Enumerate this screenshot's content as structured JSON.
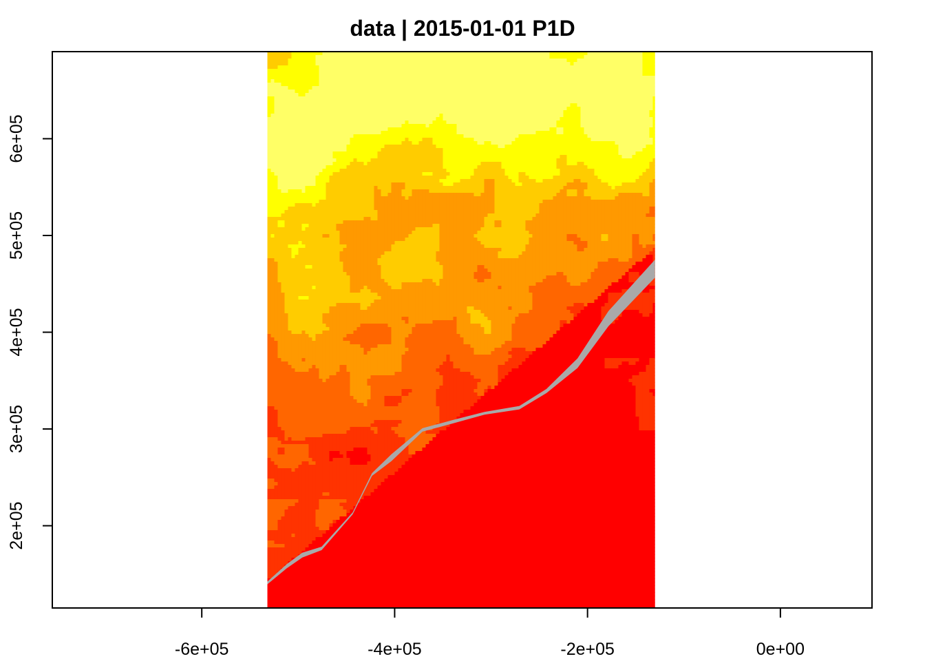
{
  "chart_data": {
    "type": "heatmap",
    "title": "data | 2015-01-01 P1D",
    "xlabel": "",
    "ylabel": "",
    "xlim": [
      -755000,
      95000
    ],
    "ylim": [
      115000,
      690000
    ],
    "x_ticks": [
      {
        "value": -600000,
        "label": "-6e+05"
      },
      {
        "value": -400000,
        "label": "-4e+05"
      },
      {
        "value": -200000,
        "label": "-2e+05"
      },
      {
        "value": 0,
        "label": "0e+00"
      }
    ],
    "y_ticks": [
      {
        "value": 200000,
        "label": "2e+05"
      },
      {
        "value": 300000,
        "label": "3e+05"
      },
      {
        "value": 400000,
        "label": "4e+05"
      },
      {
        "value": 500000,
        "label": "5e+05"
      },
      {
        "value": 600000,
        "label": "6e+05"
      }
    ],
    "raster_extent": {
      "xmin": -532000,
      "xmax": -130000,
      "ymin": 115000,
      "ymax": 690000
    },
    "palette": [
      "#FF0000",
      "#FF3300",
      "#FF6600",
      "#FF9900",
      "#FFCC00",
      "#FFFF00",
      "#FFFF66"
    ],
    "na_color": "#A9A9A9",
    "grid": false,
    "legend": "none"
  }
}
